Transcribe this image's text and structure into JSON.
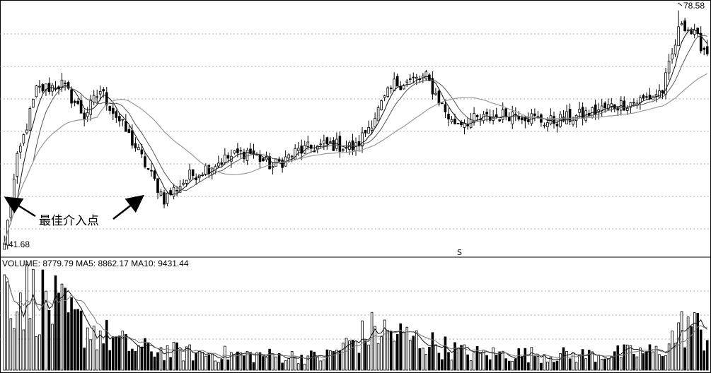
{
  "chart_data": {
    "type": "candlestick",
    "title": "",
    "price_panel": {
      "ylim": [
        40,
        80
      ],
      "high_label": "78.58",
      "low_label": "41.68",
      "annotation": "最佳介入点",
      "marker": "S",
      "series": [
        {
          "name": "K",
          "values_close": []
        },
        {
          "name": "MA5"
        },
        {
          "name": "MA10"
        },
        {
          "name": "MA30"
        }
      ]
    },
    "volume_panel": {
      "label_volume": "VOLUME:",
      "volume": "8779.79",
      "label_ma5": "MA5:",
      "ma5": "8862.17",
      "label_ma10": "MA10:",
      "ma10": "9431.44"
    },
    "anchors": [
      {
        "i": 0,
        "c": 42.0
      },
      {
        "i": 4,
        "c": 55.0
      },
      {
        "i": 10,
        "c": 66.0
      },
      {
        "i": 18,
        "c": 67.0
      },
      {
        "i": 25,
        "c": 62.0
      },
      {
        "i": 30,
        "c": 66.0
      },
      {
        "i": 40,
        "c": 58.0
      },
      {
        "i": 50,
        "c": 49.0
      },
      {
        "i": 58,
        "c": 52.5
      },
      {
        "i": 68,
        "c": 55.0
      },
      {
        "i": 76,
        "c": 56.5
      },
      {
        "i": 84,
        "c": 54.0
      },
      {
        "i": 92,
        "c": 56.5
      },
      {
        "i": 102,
        "c": 57.5
      },
      {
        "i": 110,
        "c": 57.0
      },
      {
        "i": 122,
        "c": 67.0
      },
      {
        "i": 132,
        "c": 68.0
      },
      {
        "i": 140,
        "c": 61.0
      },
      {
        "i": 150,
        "c": 61.5
      },
      {
        "i": 160,
        "c": 62.5
      },
      {
        "i": 170,
        "c": 61.0
      },
      {
        "i": 180,
        "c": 62.0
      },
      {
        "i": 190,
        "c": 63.5
      },
      {
        "i": 200,
        "c": 64.5
      },
      {
        "i": 206,
        "c": 66.0
      },
      {
        "i": 212,
        "c": 77.0
      },
      {
        "i": 220,
        "c": 72.0
      }
    ],
    "volume_anchors": [
      {
        "i": 0,
        "v": 22000
      },
      {
        "i": 12,
        "v": 19000
      },
      {
        "i": 22,
        "v": 13000
      },
      {
        "i": 40,
        "v": 6000
      },
      {
        "i": 60,
        "v": 4500
      },
      {
        "i": 100,
        "v": 3500
      },
      {
        "i": 116,
        "v": 11000
      },
      {
        "i": 130,
        "v": 8000
      },
      {
        "i": 145,
        "v": 4500
      },
      {
        "i": 180,
        "v": 4000
      },
      {
        "i": 205,
        "v": 5000
      },
      {
        "i": 214,
        "v": 13000
      },
      {
        "i": 220,
        "v": 9000
      }
    ],
    "volume_ylim": [
      0,
      28000
    ]
  }
}
